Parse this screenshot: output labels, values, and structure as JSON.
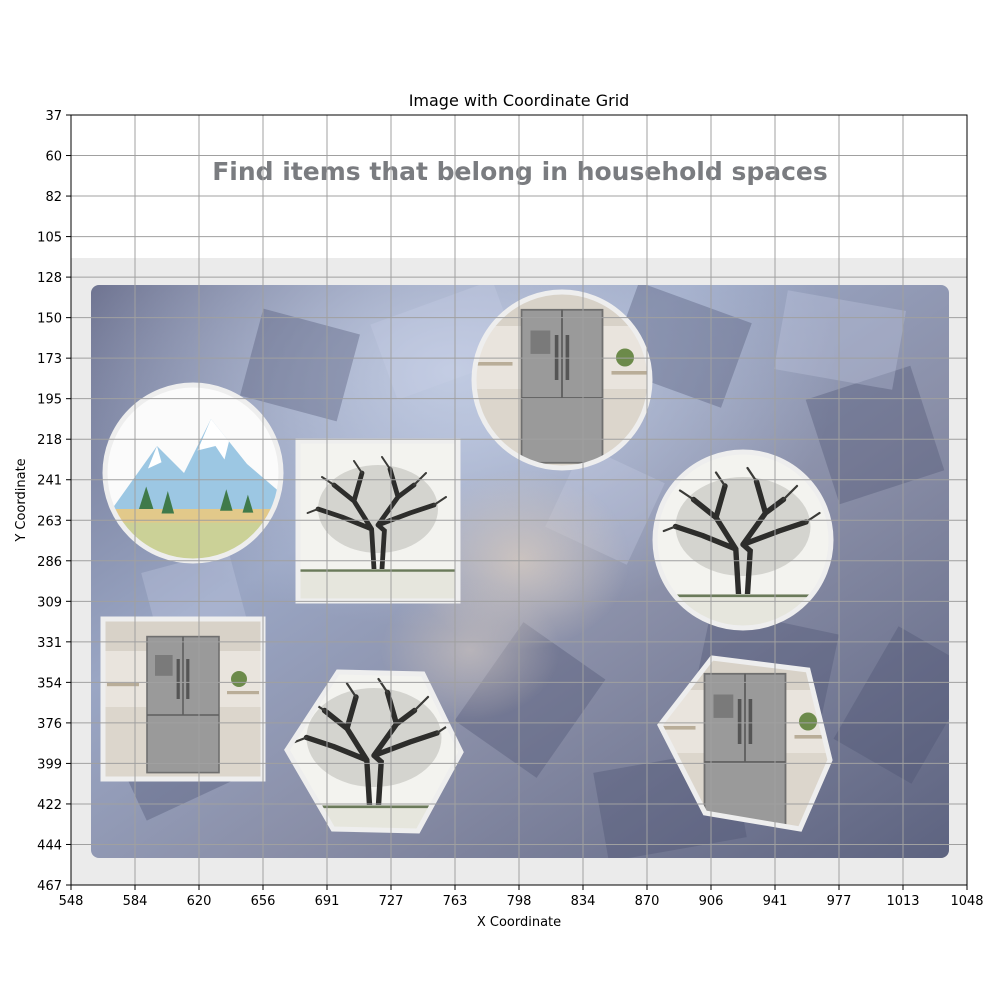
{
  "figure": {
    "title": "Image with Coordinate Grid",
    "xlabel": "X Coordinate",
    "ylabel": "Y Coordinate",
    "x_ticks": [
      "548",
      "584",
      "620",
      "656",
      "691",
      "727",
      "763",
      "798",
      "834",
      "870",
      "906",
      "941",
      "977",
      "1013",
      "1048"
    ],
    "y_ticks": [
      "37",
      "60",
      "82",
      "105",
      "128",
      "150",
      "173",
      "195",
      "218",
      "241",
      "263",
      "286",
      "309",
      "331",
      "354",
      "376",
      "399",
      "422",
      "444",
      "467"
    ]
  },
  "captcha": {
    "heading": "Find items that belong in household spaces",
    "tiles": [
      {
        "name": "mountain-landscape",
        "shape": "circle",
        "selectable": true
      },
      {
        "name": "oak-tree",
        "shape": "square",
        "selectable": true
      },
      {
        "name": "kitchen-refrigerator",
        "shape": "circle",
        "selectable": true
      },
      {
        "name": "oak-tree-sketch",
        "shape": "circle",
        "selectable": true
      },
      {
        "name": "kitchen-refrigerator",
        "shape": "square",
        "selectable": true
      },
      {
        "name": "oak-tree",
        "shape": "hexagon",
        "selectable": true
      },
      {
        "name": "kitchen-refrigerator",
        "shape": "hexagon",
        "selectable": true
      }
    ]
  },
  "colors": {
    "panel_bg": "#ebebeb",
    "board_bg": "#7f88a3",
    "grid": "#a0a0a0"
  }
}
